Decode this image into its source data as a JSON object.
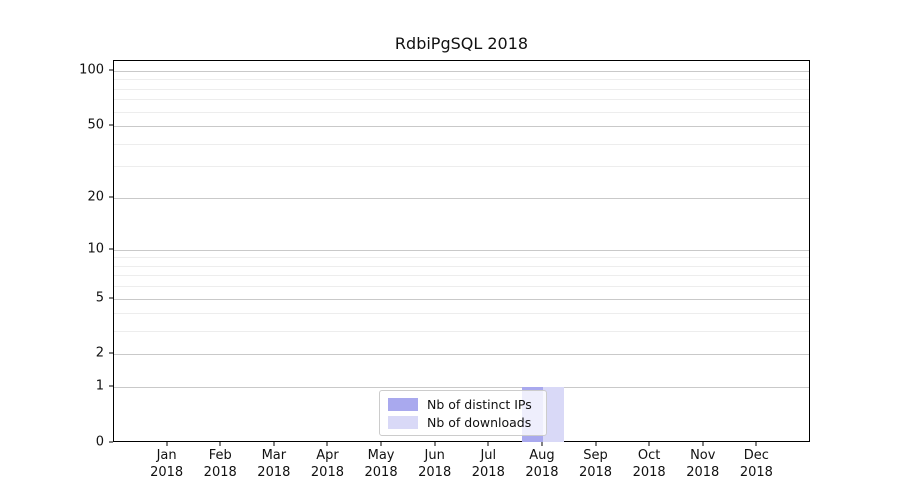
{
  "chart_data": {
    "type": "bar",
    "title": "RdbiPgSQL 2018",
    "categories": [
      "Jan 2018",
      "Feb 2018",
      "Mar 2018",
      "Apr 2018",
      "May 2018",
      "Jun 2018",
      "Jul 2018",
      "Aug 2018",
      "Sep 2018",
      "Oct 2018",
      "Nov 2018",
      "Dec 2018"
    ],
    "series": [
      {
        "name": "Nb of distinct IPs",
        "color": "#a9a9ee",
        "values": [
          0,
          0,
          0,
          0,
          0,
          0,
          0,
          1,
          0,
          0,
          0,
          0
        ]
      },
      {
        "name": "Nb of downloads",
        "color": "#d9d9f7",
        "values": [
          0,
          0,
          0,
          0,
          0,
          0,
          0,
          1,
          0,
          0,
          0,
          0
        ]
      }
    ],
    "yscale": "log1p",
    "ylim": [
      0,
      100
    ],
    "yticks": [
      0,
      1,
      2,
      5,
      10,
      20,
      50,
      100
    ],
    "minor_yticks": [
      3,
      4,
      6,
      7,
      8,
      9,
      30,
      40,
      60,
      70,
      80,
      90
    ],
    "grid": true,
    "legend_position": "lower-center"
  },
  "colors": {
    "grid_major": "#c9c9c9",
    "grid_minor": "#ededed",
    "spine": "#000000",
    "text": "#111111",
    "legend_border": "#cccccc"
  }
}
